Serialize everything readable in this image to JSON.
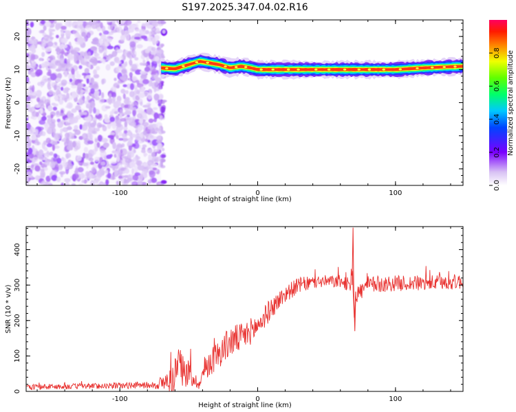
{
  "title": "S197.2025.347.04.02.R16",
  "chart_data": [
    {
      "type": "heatmap",
      "title": "S197.2025.347.04.02.R16",
      "xlabel": "Height of straight line (km)",
      "ylabel": "Frequency (Hz)",
      "xlim": [
        -168,
        149
      ],
      "ylim": [
        -25,
        25
      ],
      "xticks": [
        -100,
        0,
        100
      ],
      "yticks": [
        -20,
        -10,
        0,
        10,
        20
      ],
      "colorbar": {
        "label": "Normalized spectral amplitude",
        "range": [
          0.0,
          1.0
        ],
        "ticks": [
          0.0,
          0.2,
          0.4,
          0.6,
          0.8
        ]
      },
      "noise_region_x": [
        -168,
        -70
      ],
      "signal_line": {
        "description": "narrow high-amplitude band",
        "x": [
          -70,
          -60,
          -50,
          -42,
          -35,
          -28,
          -20,
          -12,
          -5,
          0,
          10,
          20,
          40,
          60,
          80,
          100,
          120,
          149
        ],
        "frequency": [
          10.5,
          10.2,
          11.5,
          12.5,
          12.0,
          11.5,
          10.5,
          11.0,
          10.5,
          10.0,
          10.0,
          10.0,
          10.0,
          10.0,
          10.0,
          10.0,
          10.5,
          11.0
        ]
      }
    },
    {
      "type": "line",
      "xlabel": "Height of straight line (km)",
      "ylabel": "SNR (10 * v/v)",
      "xlim": [
        -168,
        149
      ],
      "ylim": [
        0,
        465
      ],
      "xticks": [
        -100,
        0,
        100
      ],
      "yticks": [
        0,
        100,
        200,
        300,
        400
      ],
      "series": [
        {
          "name": "SNR",
          "color": "#e8312f",
          "x": [
            -168,
            -120,
            -75,
            -62,
            -58,
            -55,
            -50,
            -45,
            -42,
            -38,
            -30,
            -20,
            -10,
            0,
            10,
            20,
            30,
            45,
            60,
            67,
            69,
            70,
            71,
            80,
            100,
            120,
            149
          ],
          "y_base": [
            12,
            15,
            18,
            30,
            80,
            60,
            50,
            30,
            20,
            70,
            100,
            140,
            155,
            185,
            235,
            275,
            300,
            310,
            310,
            300,
            370,
            200,
            270,
            300,
            305,
            305,
            310
          ],
          "noise_amplitude": [
            8,
            8,
            10,
            40,
            60,
            45,
            40,
            20,
            15,
            40,
            40,
            45,
            40,
            35,
            30,
            25,
            22,
            18,
            18,
            20,
            60,
            40,
            25,
            25,
            22,
            22,
            22
          ]
        }
      ]
    }
  ]
}
